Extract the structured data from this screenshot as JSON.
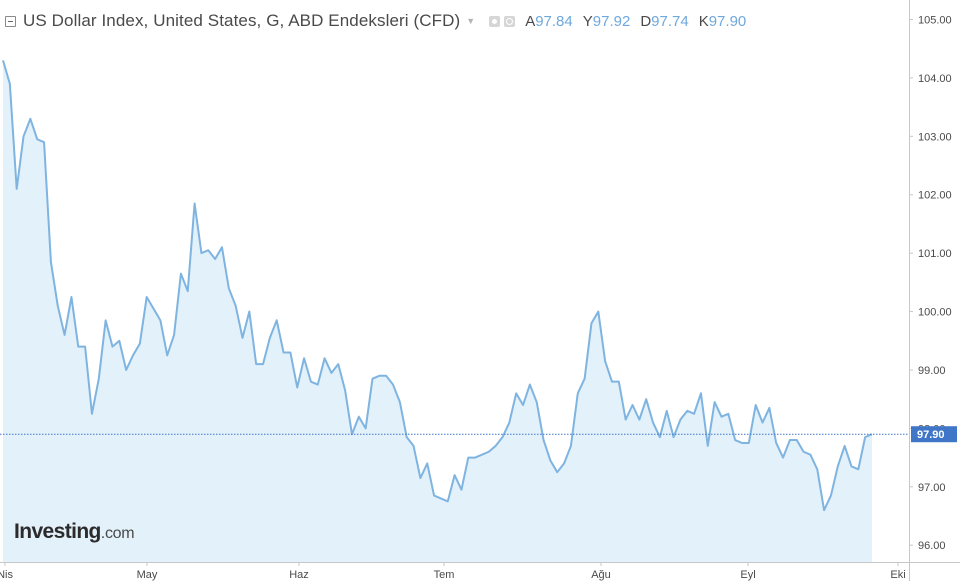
{
  "header": {
    "title": "US Dollar Index, United States, G, ABD Endeksleri (CFD)",
    "caret_icon": "caret-down-icon",
    "ohlc": [
      {
        "key": "A",
        "value": "97.84"
      },
      {
        "key": "Y",
        "value": "97.92"
      },
      {
        "key": "D",
        "value": "97.74"
      },
      {
        "key": "K",
        "value": "97.90"
      }
    ]
  },
  "logo": {
    "main": "Investing",
    "tld": ".com"
  },
  "colors": {
    "line": "#7fb4e0",
    "fill": "#e3f1fb",
    "price_tag": "#3f76c7",
    "axis": "#c7c7c7",
    "text": "#4a4a4a"
  },
  "chart_data": {
    "type": "area",
    "ylim": [
      95.7,
      105.3
    ],
    "y_ticks": [
      "96.00",
      "97.00",
      "98.00",
      "99.00",
      "100.00",
      "101.00",
      "102.00",
      "103.00",
      "104.00",
      "105.00"
    ],
    "x_tick_labels": [
      "Nis",
      "May",
      "Haz",
      "Tem",
      "Ağu",
      "Eyl",
      "Eki"
    ],
    "last_price": "97.90",
    "last_value": 97.9,
    "series": [
      {
        "values": [
          104.3,
          103.9,
          102.1,
          103.0,
          103.3,
          102.95,
          102.9,
          100.85,
          100.1,
          99.6,
          100.25,
          99.4,
          99.4,
          98.25,
          98.85,
          99.85,
          99.4,
          99.5,
          99.0,
          99.25,
          99.45,
          100.25,
          100.05,
          99.85,
          99.25,
          99.6,
          100.65,
          100.35,
          101.85,
          101.0,
          101.05,
          100.9,
          101.1,
          100.4,
          100.1,
          99.55,
          100.0,
          99.1,
          99.1,
          99.55,
          99.85,
          99.3,
          99.3,
          98.7,
          99.2,
          98.8,
          98.75,
          99.2,
          98.95,
          99.1,
          98.65,
          97.9,
          98.2,
          98.0,
          98.85,
          98.9,
          98.9,
          98.75,
          98.45,
          97.85,
          97.7,
          97.15,
          97.4,
          96.85,
          96.8,
          96.75,
          97.2,
          96.95,
          97.5,
          97.5,
          97.55,
          97.6,
          97.7,
          97.85,
          98.1,
          98.6,
          98.4,
          98.75,
          98.45,
          97.8,
          97.45,
          97.25,
          97.4,
          97.7,
          98.6,
          98.85,
          99.8,
          100.0,
          99.15,
          98.8,
          98.8,
          98.15,
          98.4,
          98.15,
          98.5,
          98.1,
          97.85,
          98.3,
          97.85,
          98.15,
          98.3,
          98.25,
          98.6,
          97.7,
          98.45,
          98.2,
          98.25,
          97.8,
          97.75,
          97.75,
          98.4,
          98.1,
          98.35,
          97.75,
          97.5,
          97.8,
          97.8,
          97.6,
          97.55,
          97.3,
          96.6,
          96.85,
          97.35,
          97.7,
          97.35,
          97.3,
          97.85,
          97.9
        ]
      }
    ]
  }
}
